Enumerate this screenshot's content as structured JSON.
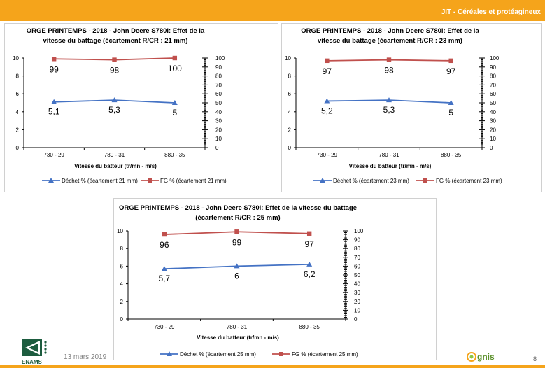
{
  "header": {
    "title": "JIT - Céréales et protéagineux"
  },
  "footer": {
    "date": "13 mars 2019",
    "page": "8",
    "logo_left": "ENAMS",
    "logo_right": "gnis"
  },
  "chart_data": [
    {
      "type": "line",
      "title_lines": [
        "ORGE PRINTEMPS - 2018 - John Deere S780i: Effet de la",
        "vitesse du battage (écartement R/CR : 21 mm)"
      ],
      "xlabel": "Vitesse du batteur (tr/mn - m/s)",
      "categories": [
        "730 - 29",
        "780 - 31",
        "880 - 35"
      ],
      "y_left": {
        "lim": [
          0,
          10
        ],
        "ticks": [
          "0",
          "2",
          "4",
          "6",
          "8",
          "10"
        ]
      },
      "y_right": {
        "lim": [
          0,
          100
        ],
        "ticks": [
          "0",
          "10",
          "20",
          "30",
          "40",
          "50",
          "60",
          "70",
          "80",
          "90",
          "100"
        ]
      },
      "series": [
        {
          "name": "Déchet % (écartement 21 mm)",
          "axis": "left",
          "color": "#4472c4",
          "marker": "triangle",
          "values": [
            5.1,
            5.3,
            5.0
          ],
          "labels": [
            "5,1",
            "5,3",
            "5"
          ]
        },
        {
          "name": "FG % (écartement 21 mm)",
          "axis": "right",
          "color": "#c0504d",
          "marker": "square",
          "values": [
            99,
            98,
            100
          ],
          "labels": [
            "99",
            "98",
            "100"
          ]
        }
      ]
    },
    {
      "type": "line",
      "title_lines": [
        "ORGE PRINTEMPS - 2018 - John Deere S780i: Effet de la",
        "vitesse du battage (écartement R/CR : 23 mm)"
      ],
      "xlabel": "Vitesse du batteur (tr/mn - m/s)",
      "categories": [
        "730 - 29",
        "780 - 31",
        "880 - 35"
      ],
      "y_left": {
        "lim": [
          0,
          10
        ],
        "ticks": [
          "0",
          "2",
          "4",
          "6",
          "8",
          "10"
        ]
      },
      "y_right": {
        "lim": [
          0,
          100
        ],
        "ticks": [
          "0",
          "10",
          "20",
          "30",
          "40",
          "50",
          "60",
          "70",
          "80",
          "90",
          "100"
        ]
      },
      "series": [
        {
          "name": "Déchet % (écartement 23 mm)",
          "axis": "left",
          "color": "#4472c4",
          "marker": "triangle",
          "values": [
            5.2,
            5.3,
            5.0
          ],
          "labels": [
            "5,2",
            "5,3",
            "5"
          ]
        },
        {
          "name": "FG % (écartement 23 mm)",
          "axis": "right",
          "color": "#c0504d",
          "marker": "square",
          "values": [
            97,
            98,
            97
          ],
          "labels": [
            "97",
            "98",
            "97"
          ]
        }
      ]
    },
    {
      "type": "line",
      "title_lines": [
        "ORGE PRINTEMPS - 2018 - John Deere S780i: Effet de la vitesse du battage",
        "(écartement R/CR : 25 mm)"
      ],
      "xlabel": "Vitesse du batteur (tr/mn - m/s)",
      "categories": [
        "730 - 29",
        "780 - 31",
        "880 - 35"
      ],
      "y_left": {
        "lim": [
          0,
          10
        ],
        "ticks": [
          "0",
          "2",
          "4",
          "6",
          "8",
          "10"
        ]
      },
      "y_right": {
        "lim": [
          0,
          100
        ],
        "ticks": [
          "0",
          "10",
          "20",
          "30",
          "40",
          "50",
          "60",
          "70",
          "80",
          "90",
          "100"
        ]
      },
      "series": [
        {
          "name": "Déchet % (écartement 25 mm)",
          "axis": "left",
          "color": "#4472c4",
          "marker": "triangle",
          "values": [
            5.7,
            6.0,
            6.2
          ],
          "labels": [
            "5,7",
            "6",
            "6,2"
          ]
        },
        {
          "name": "FG % (écartement 25 mm)",
          "axis": "right",
          "color": "#c0504d",
          "marker": "square",
          "values": [
            96,
            99,
            97
          ],
          "labels": [
            "96",
            "99",
            "97"
          ]
        }
      ]
    }
  ]
}
